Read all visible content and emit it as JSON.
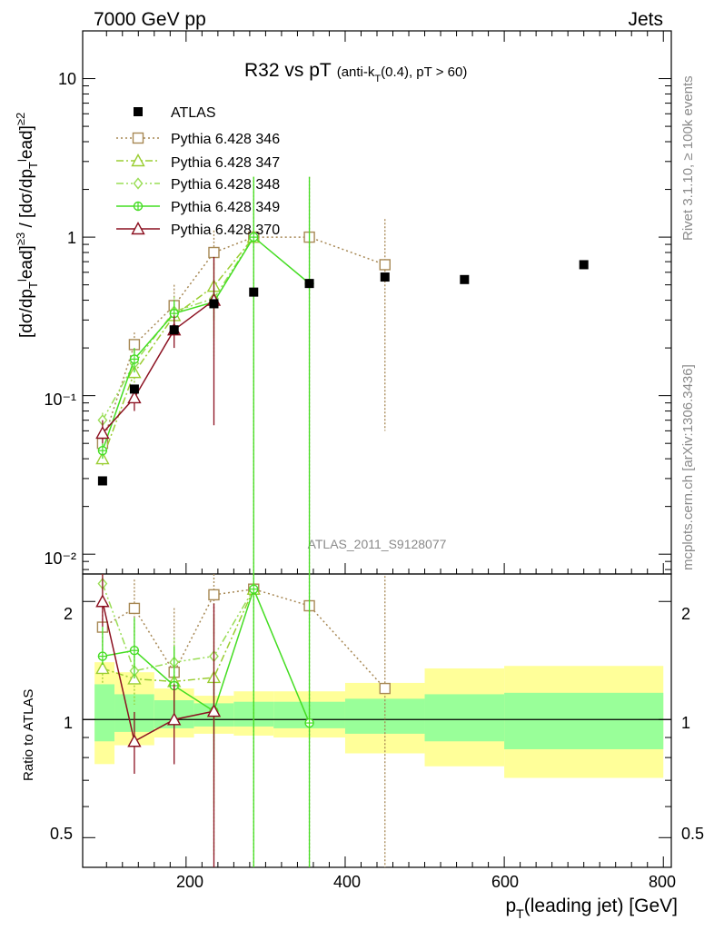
{
  "header": {
    "left": "7000 GeV pp",
    "right": "Jets"
  },
  "side": {
    "rivet": "Rivet 3.1.10, ≥ 100k events",
    "mcplots": "mcplots.cern.ch [arXiv:1306.3436]"
  },
  "watermark": "ATLAS_2011_S9128077",
  "chart_data": {
    "type": "line",
    "title": "R32 vs pT",
    "title_small": "(anti-k",
    "title_small_sub": "T",
    "title_small_tail": "(0.4), pT > 60)",
    "ylabel_main": "[dσ/dp",
    "ylabel_ratio": "Ratio to ATLAS",
    "xlabel_main": "p",
    "xlabel_sub": "T",
    "xlabel_tail": "(leading jet) [GeV]",
    "xlim": [
      70,
      810
    ],
    "ylim": [
      0.0075,
      20
    ],
    "ratio_ylim": [
      0.42,
      2.35
    ],
    "yscale": "log",
    "x_ticks": [
      "200",
      "400",
      "600",
      "800"
    ],
    "y_ticks": [
      "10⁻²",
      "10⁻¹",
      "1",
      "10"
    ],
    "ratio_ticks": [
      "0.5",
      "1",
      "2"
    ],
    "legend_position": "top-left",
    "data": {
      "name": "ATLAS",
      "x": [
        95,
        135,
        185,
        235,
        285,
        355,
        450,
        550,
        700
      ],
      "y": [
        0.029,
        0.11,
        0.26,
        0.38,
        0.45,
        0.51,
        0.56,
        0.54,
        0.67
      ],
      "color": "#000000"
    },
    "band_edges": [
      85,
      110,
      160,
      210,
      260,
      310,
      400,
      500,
      600,
      800
    ],
    "band_green": [
      [
        0.88,
        1.23
      ],
      [
        0.93,
        1.16
      ],
      [
        0.95,
        1.12
      ],
      [
        0.96,
        1.1
      ],
      [
        0.96,
        1.11
      ],
      [
        0.95,
        1.11
      ],
      [
        0.92,
        1.13
      ],
      [
        0.88,
        1.16
      ],
      [
        0.84,
        1.17
      ]
    ],
    "band_yellow": [
      [
        0.77,
        1.4
      ],
      [
        0.86,
        1.32
      ],
      [
        0.9,
        1.2
      ],
      [
        0.92,
        1.15
      ],
      [
        0.91,
        1.18
      ],
      [
        0.9,
        1.18
      ],
      [
        0.82,
        1.24
      ],
      [
        0.76,
        1.35
      ],
      [
        0.71,
        1.37
      ]
    ],
    "series": [
      {
        "name": "Pythia 6.428 346",
        "color": "#a78854",
        "dash": "2,3",
        "marker": "square-open",
        "x": [
          95,
          135,
          185,
          235,
          285,
          355,
          450
        ],
        "y": [
          0.05,
          0.21,
          0.37,
          0.8,
          1.0,
          1.0,
          0.67
        ],
        "lo": [
          0.045,
          0.18,
          0.3,
          0.62,
          0.0001,
          0.0001,
          0.06
        ],
        "hi": [
          0.056,
          0.25,
          0.5,
          1.1,
          2.4,
          2.4,
          1.3
        ],
        "ratio": [
          1.72,
          1.92,
          1.32,
          2.08,
          2.15,
          1.95,
          1.2
        ]
      },
      {
        "name": "Pythia 6.428 347",
        "color": "#9acd32",
        "dash": "8,3,2,3",
        "marker": "triangle-open",
        "x": [
          95,
          135,
          185,
          235,
          285
        ],
        "y": [
          0.04,
          0.14,
          0.32,
          0.49,
          1.0
        ],
        "lo": [
          0.036,
          0.12,
          0.26,
          0.23,
          0.0001
        ],
        "hi": [
          0.046,
          0.17,
          0.4,
          0.7,
          2.4
        ],
        "ratio": [
          1.35,
          1.27,
          1.25,
          1.28,
          2.15
        ]
      },
      {
        "name": "Pythia 6.428 348",
        "color": "#99dd55",
        "dash": "8,3,2,3,2,3",
        "marker": "diamond-open",
        "x": [
          95,
          135,
          185,
          235,
          285
        ],
        "y": [
          0.07,
          0.16,
          0.34,
          0.41,
          1.0
        ],
        "lo": [
          0.062,
          0.14,
          0.28,
          0.17,
          0.0001
        ],
        "hi": [
          0.078,
          0.19,
          0.42,
          0.68,
          2.4
        ],
        "ratio": [
          2.22,
          1.33,
          1.4,
          1.45,
          2.15
        ]
      },
      {
        "name": "Pythia 6.428 349",
        "color": "#44dd22",
        "dash": "",
        "marker": "circle-cross",
        "x": [
          95,
          135,
          185,
          235,
          285,
          355
        ],
        "y": [
          0.045,
          0.17,
          0.33,
          0.39,
          1.0,
          0.51
        ],
        "lo": [
          0.04,
          0.14,
          0.27,
          0.3,
          0.0001,
          0.0001
        ],
        "hi": [
          0.05,
          0.2,
          0.4,
          0.48,
          2.4,
          2.4
        ],
        "ratio": [
          1.45,
          1.5,
          1.22,
          1.05,
          2.15,
          0.98
        ]
      },
      {
        "name": "Pythia 6.428 370",
        "color": "#8b1020",
        "dash": "",
        "marker": "triangle-open",
        "x": [
          95,
          135,
          185,
          235
        ],
        "y": [
          0.058,
          0.097,
          0.26,
          0.4
        ],
        "lo": [
          0.05,
          0.08,
          0.2,
          0.065
        ],
        "hi": [
          0.07,
          0.115,
          0.32,
          0.75
        ],
        "ratio": [
          2.0,
          0.88,
          1.0,
          1.05
        ]
      }
    ]
  }
}
